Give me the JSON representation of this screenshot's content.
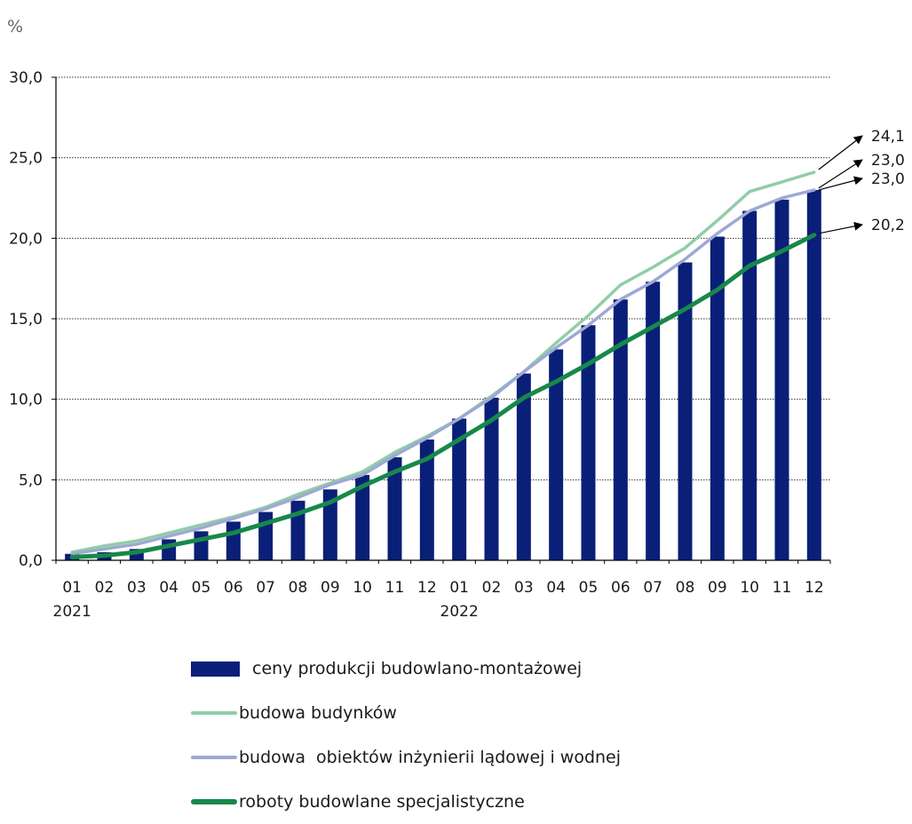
{
  "chart_data": {
    "type": "bar",
    "y_unit": "%",
    "ylim": [
      0,
      30
    ],
    "y_ticks": [
      "0,0",
      "5,0",
      "10,0",
      "15,0",
      "20,0",
      "25,0",
      "30,0"
    ],
    "grid": true,
    "categories": [
      "01",
      "02",
      "03",
      "04",
      "05",
      "06",
      "07",
      "08",
      "09",
      "10",
      "11",
      "12",
      "01",
      "02",
      "03",
      "04",
      "05",
      "06",
      "07",
      "08",
      "09",
      "10",
      "11",
      "12"
    ],
    "year_labels": [
      {
        "index": 0,
        "label": "2021"
      },
      {
        "index": 12,
        "label": "2022"
      }
    ],
    "legend_position": "bottom",
    "series": [
      {
        "name": "ceny produkcji budowlano-montażowej",
        "kind": "bar",
        "color": "#0a1f78",
        "values": [
          0.4,
          0.5,
          0.7,
          1.3,
          1.8,
          2.4,
          3.0,
          3.7,
          4.4,
          5.3,
          6.4,
          7.5,
          8.8,
          10.1,
          11.6,
          13.1,
          14.6,
          16.2,
          17.3,
          18.5,
          20.1,
          21.7,
          22.4,
          23.0
        ]
      },
      {
        "name": "budowa budynków",
        "kind": "line",
        "color": "#90cda8",
        "values": [
          0.5,
          0.9,
          1.2,
          1.7,
          2.2,
          2.7,
          3.3,
          4.1,
          4.8,
          5.5,
          6.7,
          7.7,
          8.8,
          10.2,
          11.7,
          13.5,
          15.2,
          17.1,
          18.2,
          19.4,
          21.1,
          22.9,
          23.5,
          24.1
        ]
      },
      {
        "name": "budowa  obiektów inżynierii lądowej i wodnej",
        "kind": "line",
        "color": "#9fa8d4",
        "values": [
          0.4,
          0.7,
          1.0,
          1.5,
          2.0,
          2.6,
          3.2,
          3.9,
          4.7,
          5.3,
          6.5,
          7.6,
          8.8,
          10.1,
          11.7,
          13.2,
          14.6,
          16.2,
          17.3,
          18.7,
          20.3,
          21.7,
          22.5,
          23.0
        ]
      },
      {
        "name": "roboty budowlane specjalistyczne",
        "kind": "line",
        "color": "#17884a",
        "values": [
          0.2,
          0.3,
          0.5,
          0.9,
          1.3,
          1.7,
          2.3,
          2.9,
          3.6,
          4.6,
          5.5,
          6.3,
          7.5,
          8.7,
          10.1,
          11.1,
          12.2,
          13.4,
          14.5,
          15.6,
          16.8,
          18.3,
          19.2,
          20.2
        ]
      }
    ],
    "end_labels": [
      {
        "text": "24,1",
        "series": 1
      },
      {
        "text": "23,0",
        "series": 2
      },
      {
        "text": "23,0",
        "series": 0
      },
      {
        "text": "20,2",
        "series": 3
      }
    ]
  }
}
